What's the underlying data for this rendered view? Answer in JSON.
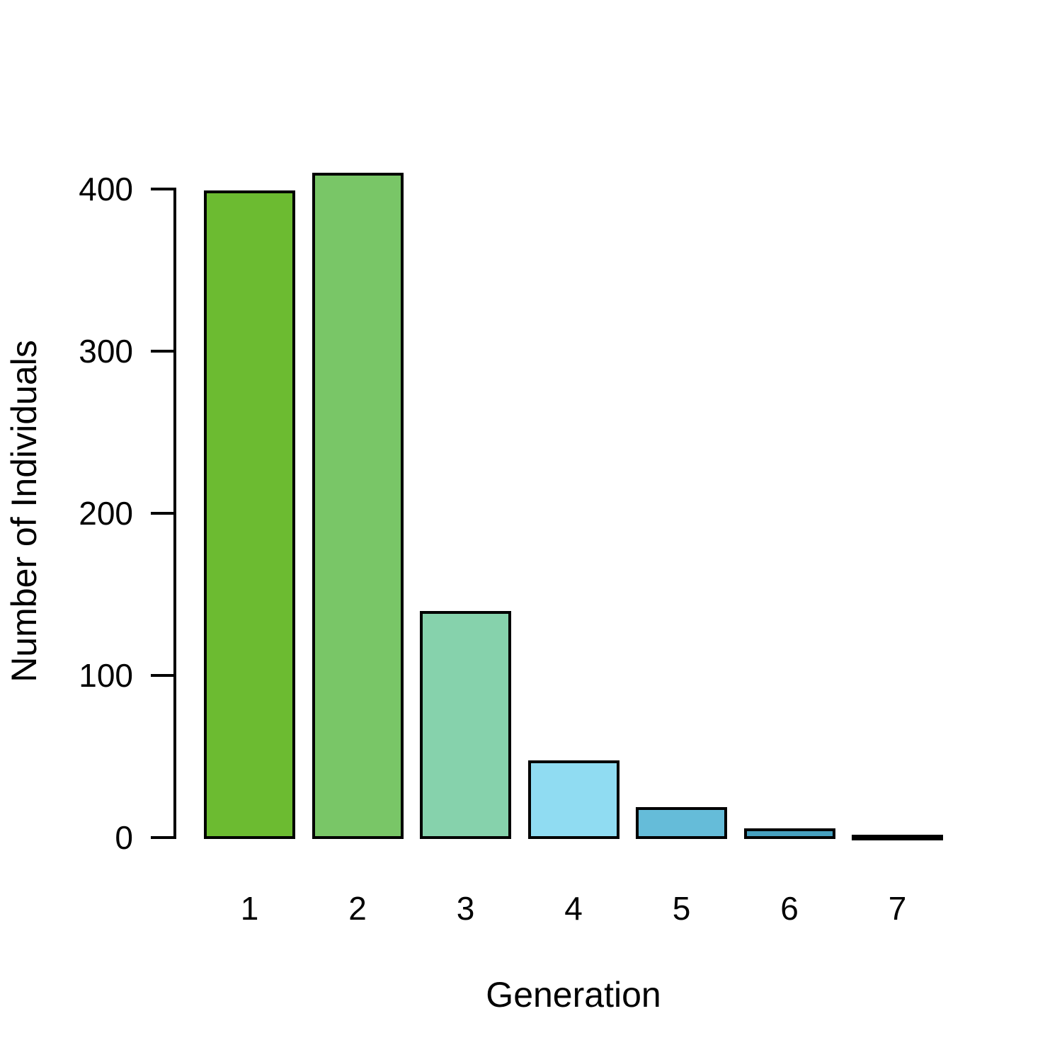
{
  "chart_data": {
    "type": "bar",
    "title": "",
    "xlabel": "Generation",
    "ylabel": "Number of Individuals",
    "categories": [
      "1",
      "2",
      "3",
      "4",
      "5",
      "6",
      "7"
    ],
    "values": [
      398,
      409,
      139,
      47,
      18,
      5,
      1
    ],
    "bar_colors": [
      "#6cbb31",
      "#79c667",
      "#86d2ac",
      "#90dcf2",
      "#65bcd9",
      "#46a0bf",
      "#2e86a6"
    ],
    "bar_border_color": "#000000",
    "y_ticks": [
      0,
      100,
      200,
      300,
      400
    ],
    "ylim": [
      0,
      410
    ],
    "grid": false,
    "legend": false,
    "background": "#ffffff",
    "text_color": "#000000"
  }
}
